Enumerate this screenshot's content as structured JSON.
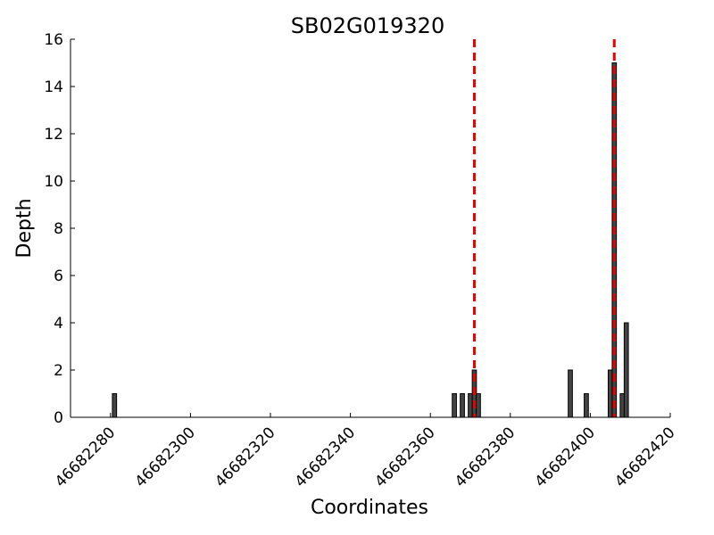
{
  "chart_data": {
    "type": "bar",
    "title": "SB02G019320",
    "xlabel": "Coordinates",
    "ylabel": "Depth",
    "xlim": [
      46682270,
      46682420
    ],
    "ylim": [
      0,
      16
    ],
    "xticks": [
      46682280,
      46682300,
      46682320,
      46682340,
      46682360,
      46682380,
      46682400,
      46682420
    ],
    "yticks": [
      0,
      2,
      4,
      6,
      8,
      10,
      12,
      14,
      16
    ],
    "grid": false,
    "legend": "none",
    "bar_color": "#444444",
    "reference_line_color": "#ee0000",
    "reference_lines": [
      46682371,
      46682406
    ],
    "bars": [
      {
        "x": 46682281,
        "y": 1
      },
      {
        "x": 46682366,
        "y": 1
      },
      {
        "x": 46682368,
        "y": 1
      },
      {
        "x": 46682370,
        "y": 1
      },
      {
        "x": 46682371,
        "y": 2
      },
      {
        "x": 46682372,
        "y": 1
      },
      {
        "x": 46682395,
        "y": 2
      },
      {
        "x": 46682399,
        "y": 1
      },
      {
        "x": 46682405,
        "y": 2
      },
      {
        "x": 46682406,
        "y": 15
      },
      {
        "x": 46682408,
        "y": 1
      },
      {
        "x": 46682409,
        "y": 4
      }
    ]
  }
}
